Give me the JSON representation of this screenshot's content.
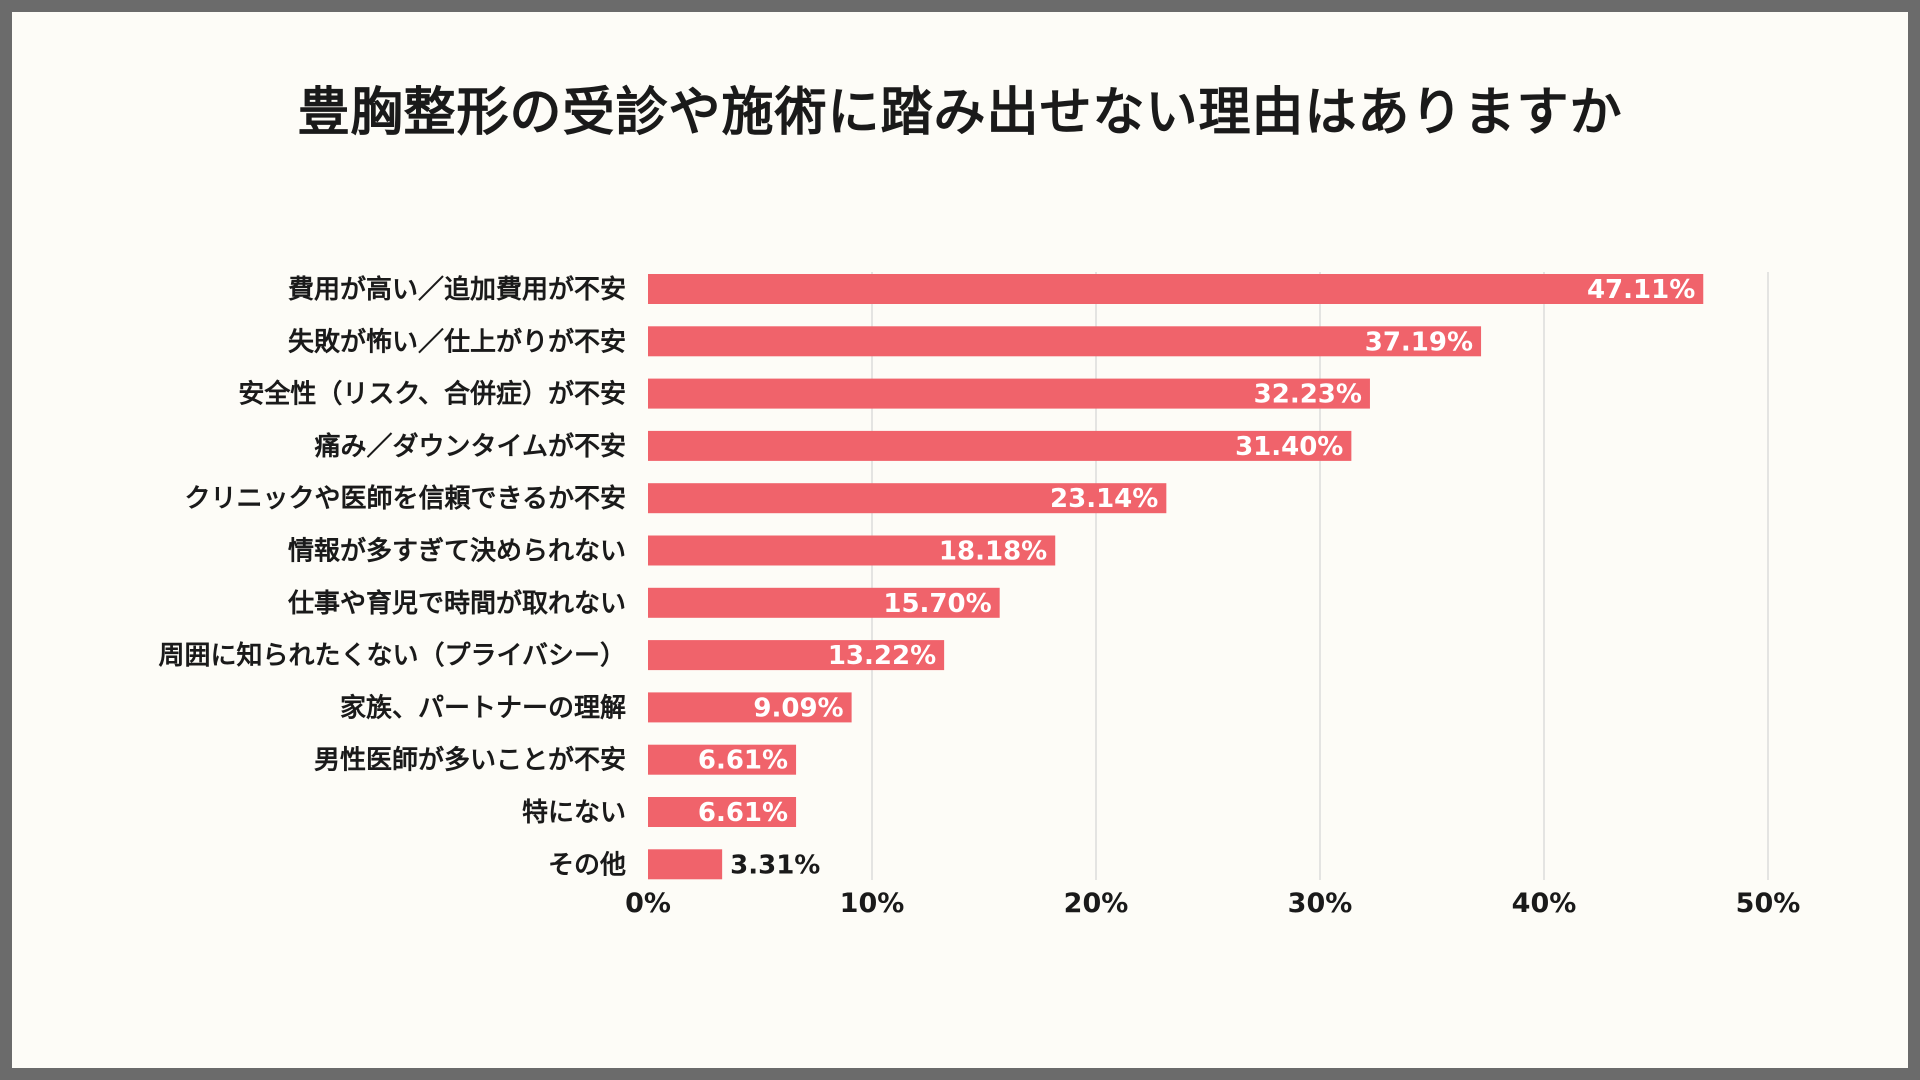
{
  "chart_data": {
    "type": "bar",
    "orientation": "horizontal",
    "title": "豊胸整形の受診や施術に踏み出せない理由はありますか",
    "categories": [
      "費用が高い／追加費用が不安",
      "失敗が怖い／仕上がりが不安",
      "安全性（リスク、合併症）が不安",
      "痛み／ダウンタイムが不安",
      "クリニックや医師を信頼できるか不安",
      "情報が多すぎて決められない",
      "仕事や育児で時間が取れない",
      "周囲に知られたくない（プライバシー）",
      "家族、パートナーの理解",
      "男性医師が多いことが不安",
      "特にない",
      "その他"
    ],
    "values": [
      47.11,
      37.19,
      32.23,
      31.4,
      23.14,
      18.18,
      15.7,
      13.22,
      9.09,
      6.61,
      6.61,
      3.31
    ],
    "value_labels": [
      "47.11%",
      "37.19%",
      "32.23%",
      "31.40%",
      "23.14%",
      "18.18%",
      "15.70%",
      "13.22%",
      "9.09%",
      "6.61%",
      "6.61%",
      "3.31%"
    ],
    "xlim": [
      0,
      50
    ],
    "x_ticks": [
      0,
      10,
      20,
      30,
      40,
      50
    ],
    "x_tick_labels": [
      "0%",
      "10%",
      "20%",
      "30%",
      "40%",
      "50%"
    ],
    "xlabel": "",
    "ylabel": "",
    "grid": "vertical",
    "bar_color": "#f0636b",
    "grid_color": "#dcdcdc"
  }
}
